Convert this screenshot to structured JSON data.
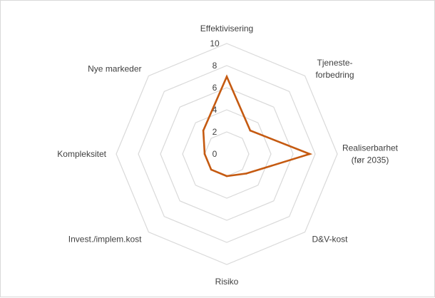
{
  "chart_data": {
    "type": "radar",
    "title": "",
    "categories": [
      "Effektivisering",
      "Tjeneste-\nforbedring",
      "Realiserbarhet\n(før 2035)",
      "D&V-kost",
      "Risiko",
      "Invest./implem.kost",
      "Kompleksitet",
      "Nye markeder"
    ],
    "r_ticks": [
      "0",
      "2",
      "4",
      "6",
      "8",
      "10"
    ],
    "r_range": [
      0,
      10
    ],
    "grid": true,
    "series": [
      {
        "name": "",
        "color": "#c55a11",
        "values": [
          7,
          3,
          7.5,
          2.5,
          2,
          2,
          2,
          3
        ]
      }
    ]
  }
}
